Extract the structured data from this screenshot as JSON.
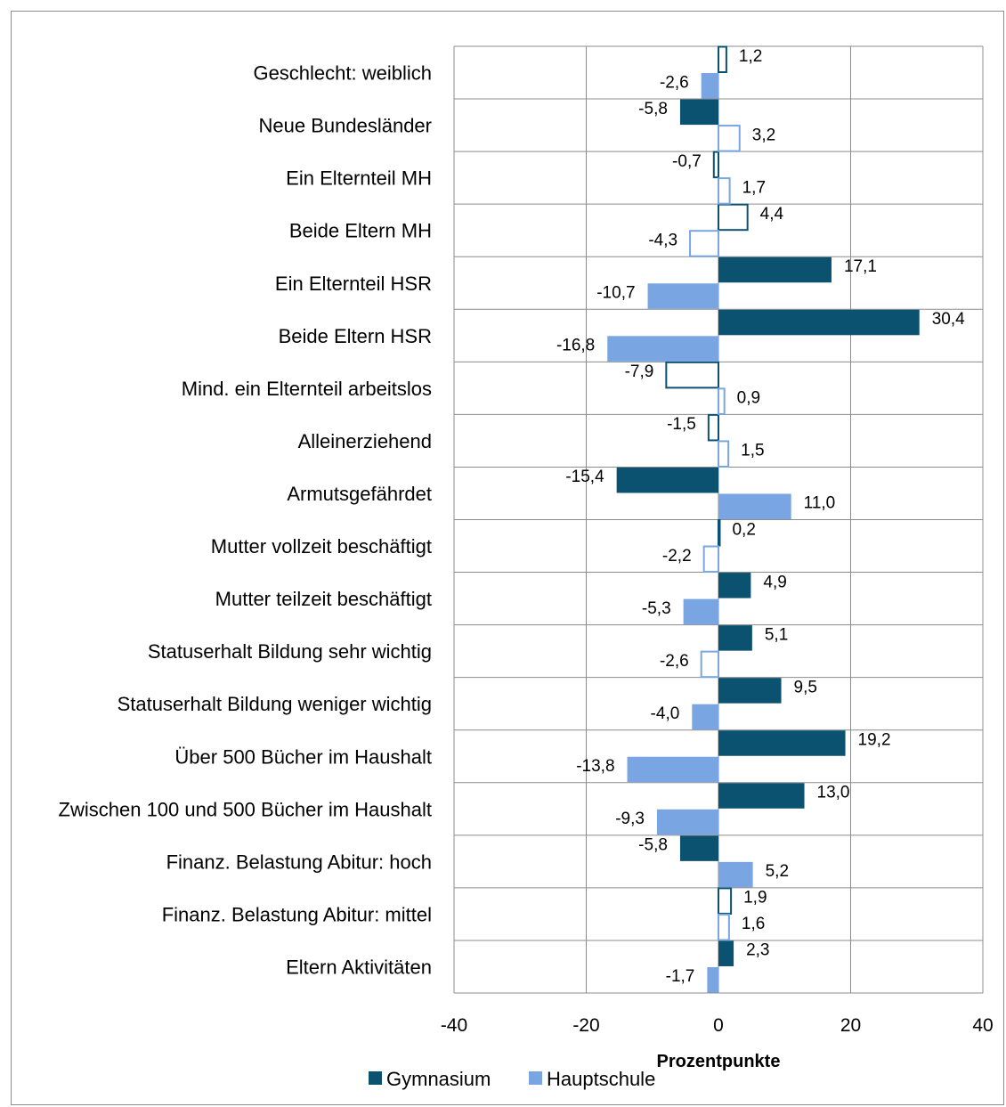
{
  "chart_data": {
    "type": "bar",
    "orientation": "horizontal",
    "title": "",
    "xlabel": "Prozentpunkte",
    "ylabel": "",
    "xlim": [
      -40,
      40
    ],
    "x_ticks": [
      "-40",
      "-20",
      "0",
      "20",
      "40"
    ],
    "grid": true,
    "legend_position": "bottom",
    "categories": [
      "Geschlecht: weiblich",
      "Neue Bundesländer",
      "Ein Elternteil MH",
      "Beide Eltern MH",
      "Ein Elternteil HSR",
      "Beide Eltern HSR",
      "Mind. ein Elternteil arbeitslos",
      "Alleinerziehend",
      "Armutsgefährdet",
      "Mutter vollzeit beschäftigt",
      "Mutter teilzeit beschäftigt",
      "Statuserhalt Bildung sehr wichtig",
      "Statuserhalt Bildung weniger wichtig",
      "Über 500 Bücher im Haushalt",
      "Zwischen 100 und 500 Bücher im Haushalt",
      "Finanz. Belastung Abitur: hoch",
      "Finanz. Belastung Abitur: mittel",
      "Eltern Aktivitäten"
    ],
    "series": [
      {
        "name": "Gymnasium",
        "color": "#0b5271",
        "values": [
          1.2,
          -5.8,
          -0.7,
          4.4,
          17.1,
          30.4,
          -7.9,
          -1.5,
          -15.4,
          0.2,
          4.9,
          5.1,
          9.5,
          19.2,
          13.0,
          -5.8,
          1.9,
          2.3
        ],
        "labels": [
          "1,2",
          "-5,8",
          "-0,7",
          "4,4",
          "17,1",
          "30,4",
          "-7,9",
          "-1,5",
          "-15,4",
          "0,2",
          "4,9",
          "5,1",
          "9,5",
          "19,2",
          "13,0",
          "-5,8",
          "1,9",
          "2,3"
        ],
        "filled": [
          false,
          true,
          false,
          false,
          true,
          true,
          false,
          false,
          true,
          false,
          true,
          true,
          true,
          true,
          true,
          true,
          false,
          true
        ]
      },
      {
        "name": "Hauptschule",
        "color": "#79a6e2",
        "values": [
          -2.6,
          3.2,
          1.7,
          -4.3,
          -10.7,
          -16.8,
          0.9,
          1.5,
          11.0,
          -2.2,
          -5.3,
          -2.6,
          -4.0,
          -13.8,
          -9.3,
          5.2,
          1.6,
          -1.7
        ],
        "labels": [
          "-2,6",
          "3,2",
          "1,7",
          "-4,3",
          "-10,7",
          "-16,8",
          "0,9",
          "1,5",
          "11,0",
          "-2,2",
          "-5,3",
          "-2,6",
          "-4,0",
          "-13,8",
          "-9,3",
          "5,2",
          "1,6",
          "-1,7"
        ],
        "filled": [
          true,
          false,
          false,
          false,
          true,
          true,
          false,
          false,
          true,
          false,
          true,
          false,
          true,
          true,
          true,
          true,
          false,
          true
        ]
      }
    ]
  }
}
